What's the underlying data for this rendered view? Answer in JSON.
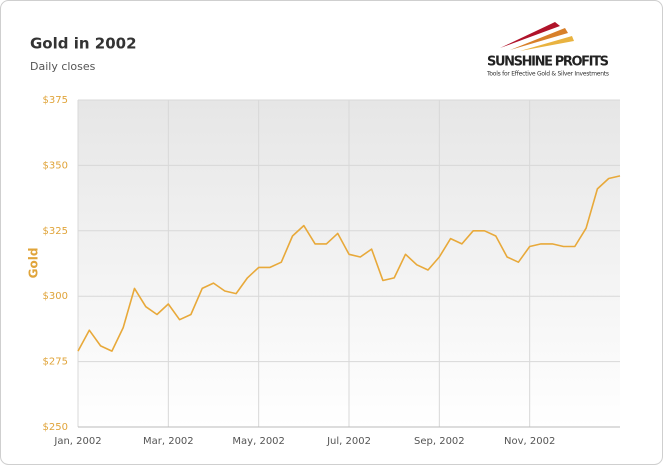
{
  "chart_data": {
    "type": "line",
    "title": "Gold in 2002",
    "subtitle": "Daily closes",
    "y_label": "Gold",
    "logo": {
      "name": "SUNSHINE PROFITS",
      "tagline": "Tools for Effective Gold & Silver Investments"
    },
    "categories": [
      "Jan, 2002",
      null,
      null,
      null,
      null,
      null,
      null,
      null,
      "Mar, 2002",
      null,
      null,
      null,
      null,
      null,
      null,
      null,
      "May, 2002",
      null,
      null,
      null,
      null,
      null,
      null,
      null,
      "Jul, 2002",
      null,
      null,
      null,
      null,
      null,
      null,
      null,
      "Sep, 2002",
      null,
      null,
      null,
      null,
      null,
      null,
      null,
      "Nov, 2002",
      null,
      null,
      null,
      null,
      null,
      null,
      null,
      null
    ],
    "values": [
      279,
      287,
      281,
      279,
      288,
      303,
      296,
      293,
      297,
      291,
      293,
      303,
      305,
      302,
      301,
      307,
      311,
      311,
      313,
      323,
      327,
      320,
      320,
      324,
      316,
      315,
      318,
      306,
      307,
      316,
      312,
      310,
      315,
      322,
      320,
      325,
      325,
      323,
      315,
      313,
      319,
      320,
      320,
      319,
      319,
      326,
      341,
      345,
      346
    ],
    "color": "#e8a93a",
    "ylim": [
      250,
      375
    ],
    "yticks": [
      {
        "value": 250,
        "label": "$250"
      },
      {
        "value": 275,
        "label": "$275"
      },
      {
        "value": 300,
        "label": "$300"
      },
      {
        "value": 325,
        "label": "$325"
      },
      {
        "value": 350,
        "label": "$350"
      },
      {
        "value": 375,
        "label": "$375"
      }
    ],
    "grid": true
  }
}
